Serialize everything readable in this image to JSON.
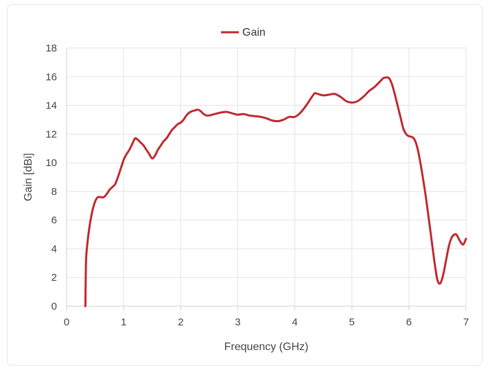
{
  "chart_data": {
    "type": "line",
    "title": "",
    "xlabel": "Frequency (GHz)",
    "ylabel": "Gain [dBi]",
    "xlim": [
      0,
      7
    ],
    "ylim": [
      0,
      18
    ],
    "x_ticks": [
      0,
      1,
      2,
      3,
      4,
      5,
      6,
      7
    ],
    "y_ticks": [
      0,
      2,
      4,
      6,
      8,
      10,
      12,
      14,
      16,
      18
    ],
    "grid": true,
    "legend_position": "top-center",
    "series": [
      {
        "name": "Gain",
        "color": "#c0282d",
        "x": [
          0.33,
          0.34,
          0.36,
          0.4,
          0.45,
          0.5,
          0.55,
          0.6,
          0.65,
          0.7,
          0.75,
          0.8,
          0.85,
          0.9,
          0.95,
          1.0,
          1.05,
          1.1,
          1.15,
          1.2,
          1.25,
          1.3,
          1.35,
          1.4,
          1.45,
          1.5,
          1.55,
          1.6,
          1.65,
          1.7,
          1.75,
          1.8,
          1.85,
          1.9,
          1.95,
          2.0,
          2.05,
          2.1,
          2.15,
          2.2,
          2.25,
          2.3,
          2.35,
          2.4,
          2.45,
          2.5,
          2.55,
          2.6,
          2.7,
          2.8,
          2.9,
          3.0,
          3.1,
          3.2,
          3.3,
          3.4,
          3.5,
          3.6,
          3.7,
          3.8,
          3.9,
          4.0,
          4.1,
          4.2,
          4.3,
          4.35,
          4.4,
          4.5,
          4.6,
          4.7,
          4.8,
          4.9,
          5.0,
          5.1,
          5.2,
          5.3,
          5.4,
          5.5,
          5.55,
          5.6,
          5.65,
          5.7,
          5.75,
          5.8,
          5.85,
          5.9,
          5.95,
          6.0,
          6.05,
          6.1,
          6.15,
          6.2,
          6.25,
          6.3,
          6.35,
          6.4,
          6.45,
          6.5,
          6.55,
          6.6,
          6.65,
          6.7,
          6.75,
          6.8,
          6.83,
          6.86,
          6.9,
          6.95,
          7.0
        ],
        "values": [
          0.0,
          3.0,
          4.2,
          5.5,
          6.6,
          7.3,
          7.6,
          7.6,
          7.6,
          7.8,
          8.1,
          8.3,
          8.5,
          9.0,
          9.6,
          10.2,
          10.6,
          10.9,
          11.3,
          11.7,
          11.6,
          11.4,
          11.2,
          10.9,
          10.6,
          10.3,
          10.5,
          10.9,
          11.2,
          11.5,
          11.7,
          12.0,
          12.3,
          12.5,
          12.7,
          12.8,
          13.0,
          13.3,
          13.5,
          13.6,
          13.65,
          13.7,
          13.6,
          13.4,
          13.3,
          13.3,
          13.35,
          13.4,
          13.5,
          13.55,
          13.45,
          13.35,
          13.4,
          13.3,
          13.25,
          13.2,
          13.1,
          12.95,
          12.9,
          13.0,
          13.2,
          13.2,
          13.5,
          14.0,
          14.6,
          14.85,
          14.8,
          14.7,
          14.75,
          14.8,
          14.6,
          14.3,
          14.2,
          14.3,
          14.6,
          15.0,
          15.3,
          15.7,
          15.9,
          15.95,
          15.9,
          15.5,
          14.8,
          14.0,
          13.2,
          12.4,
          12.0,
          11.85,
          11.8,
          11.6,
          11.0,
          10.0,
          8.8,
          7.5,
          6.0,
          4.5,
          3.0,
          1.8,
          1.6,
          2.2,
          3.2,
          4.2,
          4.8,
          5.0,
          5.0,
          4.8,
          4.5,
          4.3,
          4.7
        ]
      }
    ]
  }
}
